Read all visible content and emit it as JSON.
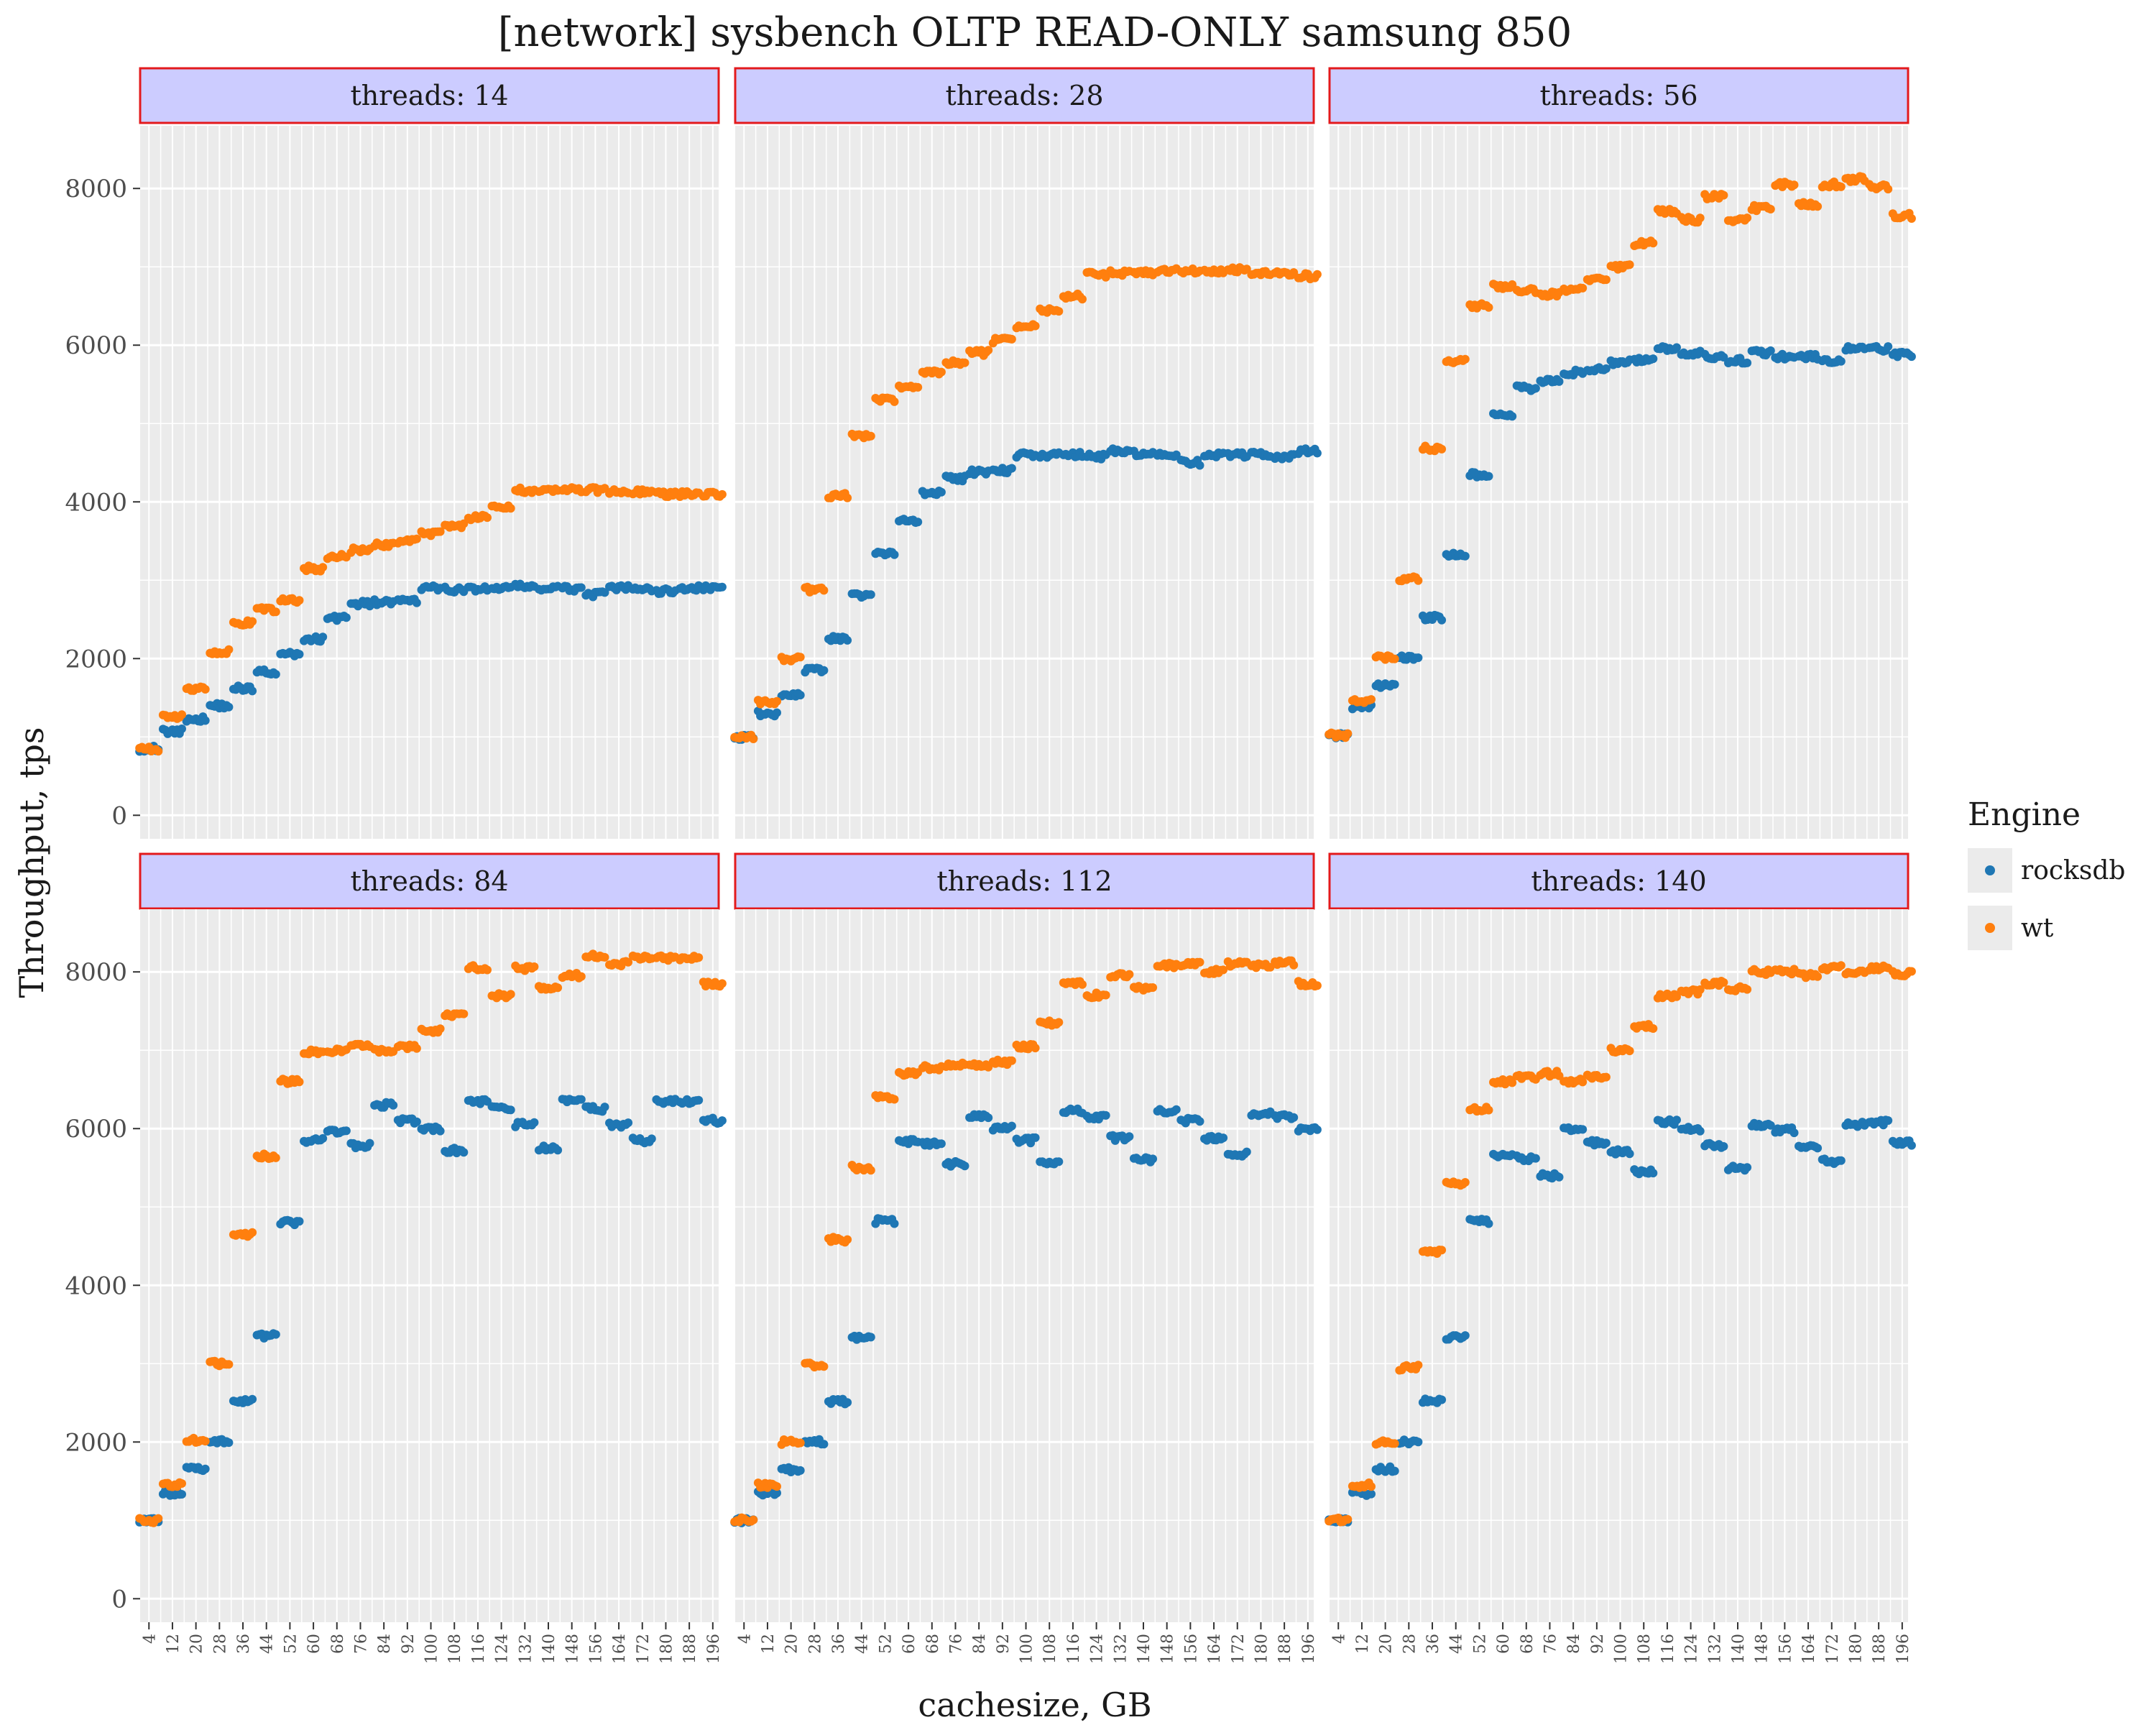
{
  "chart_data": {
    "type": "scatter",
    "title": "[network] sysbench OLTP READ-ONLY samsung 850",
    "xlabel": "cachesize, GB",
    "ylabel": "Throughput, tps",
    "xlim": [
      1,
      198
    ],
    "ylim": [
      -300,
      8800
    ],
    "x_ticks": [
      "4",
      "12",
      "20",
      "28",
      "36",
      "44",
      "52",
      "60",
      "68",
      "76",
      "84",
      "92",
      "100",
      "108",
      "116",
      "124",
      "132",
      "140",
      "148",
      "156",
      "164",
      "172",
      "180",
      "188",
      "196"
    ],
    "y_ticks": [
      0,
      2000,
      4000,
      6000,
      8000
    ],
    "grid": true,
    "legend": {
      "title": "Engine",
      "position": "right",
      "entries": [
        {
          "name": "rocksdb",
          "color": "#1f77b4"
        },
        {
          "name": "wt",
          "color": "#ff7f0e"
        }
      ]
    },
    "panels": [
      {
        "label": "threads: 14",
        "series": [
          {
            "name": "rocksdb",
            "color": "#1f77b4",
            "x": [
              4,
              12,
              20,
              28,
              36,
              44,
              52,
              60,
              68,
              76,
              84,
              92,
              100,
              108,
              116,
              124,
              132,
              140,
              148,
              156,
              164,
              172,
              180,
              188,
              196
            ],
            "y": [
              850,
              1070,
              1230,
              1400,
              1620,
              1830,
              2050,
              2250,
              2520,
              2700,
              2720,
              2730,
              2900,
              2880,
              2890,
              2900,
              2920,
              2890,
              2890,
              2820,
              2900,
              2880,
              2860,
              2900,
              2900
            ]
          },
          {
            "name": "wt",
            "color": "#ff7f0e",
            "x": [
              4,
              12,
              20,
              28,
              36,
              44,
              52,
              60,
              68,
              76,
              84,
              92,
              100,
              108,
              116,
              124,
              132,
              140,
              148,
              156,
              164,
              172,
              180,
              188,
              196
            ],
            "y": [
              850,
              1250,
              1620,
              2090,
              2450,
              2620,
              2750,
              3150,
              3300,
              3380,
              3450,
              3500,
              3600,
              3700,
              3800,
              3920,
              4150,
              4150,
              4160,
              4150,
              4130,
              4130,
              4100,
              4100,
              4100
            ]
          }
        ]
      },
      {
        "label": "threads: 28",
        "series": [
          {
            "name": "rocksdb",
            "color": "#1f77b4",
            "x": [
              4,
              12,
              20,
              28,
              36,
              44,
              52,
              60,
              68,
              76,
              84,
              92,
              100,
              108,
              116,
              124,
              132,
              140,
              148,
              156,
              164,
              172,
              180,
              188,
              196
            ],
            "y": [
              1000,
              1300,
              1550,
              1850,
              2250,
              2800,
              3350,
              3750,
              4120,
              4300,
              4380,
              4400,
              4600,
              4600,
              4600,
              4580,
              4650,
              4620,
              4600,
              4500,
              4600,
              4600,
              4600,
              4580,
              4650
            ]
          },
          {
            "name": "wt",
            "color": "#ff7f0e",
            "x": [
              4,
              12,
              20,
              28,
              36,
              44,
              52,
              60,
              68,
              76,
              84,
              92,
              100,
              108,
              116,
              124,
              132,
              140,
              148,
              156,
              164,
              172,
              180,
              188,
              196
            ],
            "y": [
              1000,
              1450,
              2000,
              2880,
              4080,
              4850,
              5300,
              5450,
              5650,
              5780,
              5900,
              6060,
              6250,
              6450,
              6620,
              6900,
              6920,
              6930,
              6950,
              6950,
              6930,
              6960,
              6930,
              6920,
              6880
            ]
          }
        ]
      },
      {
        "label": "threads: 56",
        "series": [
          {
            "name": "rocksdb",
            "color": "#1f77b4",
            "x": [
              4,
              12,
              20,
              28,
              36,
              44,
              52,
              60,
              68,
              76,
              84,
              92,
              100,
              108,
              116,
              124,
              132,
              140,
              148,
              156,
              164,
              172,
              180,
              188,
              196
            ],
            "y": [
              1020,
              1380,
              1650,
              2020,
              2520,
              3320,
              4350,
              5100,
              5450,
              5550,
              5650,
              5700,
              5780,
              5800,
              5950,
              5900,
              5850,
              5800,
              5900,
              5850,
              5850,
              5800,
              5950,
              5950,
              5880
            ]
          },
          {
            "name": "wt",
            "color": "#ff7f0e",
            "x": [
              4,
              12,
              20,
              28,
              36,
              44,
              52,
              60,
              68,
              76,
              84,
              92,
              100,
              108,
              116,
              124,
              132,
              140,
              148,
              156,
              164,
              172,
              180,
              188,
              196
            ],
            "y": [
              1020,
              1450,
              2020,
              3020,
              4680,
              5800,
              6500,
              6750,
              6700,
              6650,
              6700,
              6850,
              7000,
              7300,
              7700,
              7600,
              7900,
              7600,
              7750,
              8050,
              7800,
              8050,
              8120,
              8020,
              7650
            ]
          }
        ]
      },
      {
        "label": "threads: 84",
        "series": [
          {
            "name": "rocksdb",
            "color": "#1f77b4",
            "x": [
              4,
              12,
              20,
              28,
              36,
              44,
              52,
              60,
              68,
              76,
              84,
              92,
              100,
              108,
              116,
              124,
              132,
              140,
              148,
              156,
              164,
              172,
              180,
              188,
              196
            ],
            "y": [
              1000,
              1350,
              1650,
              2000,
              2520,
              3350,
              4800,
              5850,
              5950,
              5780,
              6300,
              6100,
              6000,
              5720,
              6350,
              6250,
              6050,
              5750,
              6350,
              6250,
              6050,
              5850,
              6350,
              6350,
              6100
            ]
          },
          {
            "name": "wt",
            "color": "#ff7f0e",
            "x": [
              4,
              12,
              20,
              28,
              36,
              44,
              52,
              60,
              68,
              76,
              84,
              92,
              100,
              108,
              116,
              124,
              132,
              140,
              148,
              156,
              164,
              172,
              180,
              188,
              196
            ],
            "y": [
              1000,
              1450,
              2020,
              3000,
              4650,
              5650,
              6600,
              6980,
              7000,
              7050,
              7000,
              7050,
              7250,
              7450,
              8050,
              7700,
              8050,
              7800,
              7950,
              8200,
              8100,
              8180,
              8180,
              8180,
              7850
            ]
          }
        ]
      },
      {
        "label": "threads: 112",
        "series": [
          {
            "name": "rocksdb",
            "color": "#1f77b4",
            "x": [
              4,
              12,
              20,
              28,
              36,
              44,
              52,
              60,
              68,
              76,
              84,
              92,
              100,
              108,
              116,
              124,
              132,
              140,
              148,
              156,
              164,
              172,
              180,
              188,
              196
            ],
            "y": [
              1000,
              1350,
              1650,
              2000,
              2520,
              3330,
              4820,
              5830,
              5800,
              5550,
              6150,
              6000,
              5850,
              5550,
              6220,
              6150,
              5880,
              5600,
              6220,
              6100,
              5880,
              5680,
              6180,
              6150,
              6000
            ]
          },
          {
            "name": "wt",
            "color": "#ff7f0e",
            "x": [
              4,
              12,
              20,
              28,
              36,
              44,
              52,
              60,
              68,
              76,
              84,
              92,
              100,
              108,
              116,
              124,
              132,
              140,
              148,
              156,
              164,
              172,
              180,
              188,
              196
            ],
            "y": [
              1000,
              1450,
              2000,
              2980,
              4580,
              5500,
              6400,
              6700,
              6780,
              6820,
              6800,
              6850,
              7050,
              7350,
              7850,
              7700,
              7950,
              7800,
              8080,
              8100,
              8000,
              8100,
              8080,
              8120,
              7850
            ]
          }
        ]
      },
      {
        "label": "threads: 140",
        "series": [
          {
            "name": "rocksdb",
            "color": "#1f77b4",
            "x": [
              4,
              12,
              20,
              28,
              36,
              44,
              52,
              60,
              68,
              76,
              84,
              92,
              100,
              108,
              116,
              124,
              132,
              140,
              148,
              156,
              164,
              172,
              180,
              188,
              196
            ],
            "y": [
              1000,
              1350,
              1650,
              2000,
              2520,
              3330,
              4820,
              5650,
              5620,
              5400,
              5980,
              5820,
              5700,
              5450,
              6080,
              6000,
              5780,
              5500,
              6050,
              5980,
              5780,
              5580,
              6050,
              6080,
              5820
            ]
          },
          {
            "name": "wt",
            "color": "#ff7f0e",
            "x": [
              4,
              12,
              20,
              28,
              36,
              44,
              52,
              60,
              68,
              76,
              84,
              92,
              100,
              108,
              116,
              124,
              132,
              140,
              148,
              156,
              164,
              172,
              180,
              188,
              196
            ],
            "y": [
              1000,
              1450,
              2000,
              2950,
              4420,
              5300,
              6250,
              6600,
              6650,
              6700,
              6600,
              6650,
              7000,
              7300,
              7700,
              7750,
              7850,
              7780,
              8000,
              8000,
              7950,
              8050,
              7980,
              8050,
              7980
            ]
          }
        ]
      }
    ]
  }
}
